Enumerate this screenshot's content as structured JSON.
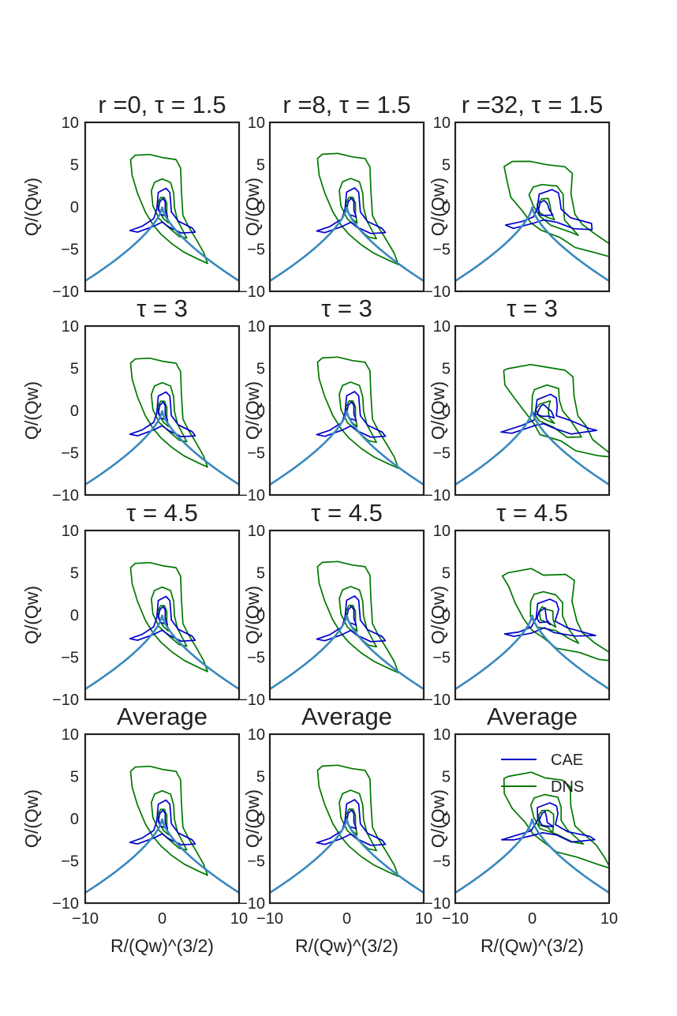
{
  "figure": {
    "shared_x_axis": {
      "label": "R/(Qw)^(3/2)",
      "range": [
        -10,
        10
      ],
      "ticks": [
        "−10",
        "0",
        "10"
      ]
    },
    "shared_y_axis": {
      "label": "Q/(Qw)",
      "range": [
        -10,
        10
      ],
      "ticks": [
        "10",
        "5",
        "0",
        "−5",
        "−10"
      ]
    },
    "legend": {
      "placement": "top-right",
      "entries": [
        {
          "label": "CAE",
          "color": "#0000cc"
        },
        {
          "label": "DNS",
          "color": "#007700"
        }
      ]
    },
    "colors": {
      "cae": "#0000cc",
      "dns": "#007700",
      "boundary": "#3b88be",
      "frame": "#222222"
    }
  },
  "chart_data": [
    {
      "type": "line",
      "title": "r =0, τ = 1.5",
      "panel": "row1-col1"
    },
    {
      "type": "line",
      "title": "r =8, τ = 1.5",
      "panel": "row1-col2"
    },
    {
      "type": "line",
      "title": "r =32, τ = 1.5",
      "panel": "row1-col3"
    },
    {
      "type": "line",
      "title": "τ = 3",
      "panel": "row2-col1"
    },
    {
      "type": "line",
      "title": "τ = 3",
      "panel": "row2-col2"
    },
    {
      "type": "line",
      "title": "τ = 3",
      "panel": "row2-col3"
    },
    {
      "type": "line",
      "title": "τ = 4.5",
      "panel": "row3-col1"
    },
    {
      "type": "line",
      "title": "τ = 4.5",
      "panel": "row3-col2"
    },
    {
      "type": "line",
      "title": "τ = 4.5",
      "panel": "row3-col3"
    },
    {
      "type": "line",
      "title": "Average",
      "panel": "row4-col1"
    },
    {
      "type": "line",
      "title": "Average",
      "panel": "row4-col2"
    },
    {
      "type": "line",
      "title": "Average",
      "panel": "row4-col3"
    }
  ],
  "boundary_curve": {
    "equation": "Q = -(27/4 R^2)^(1/3)",
    "x_range": [
      -10,
      10
    ]
  },
  "contours": {
    "dns_outer": [
      [
        -4.1,
        5.6
      ],
      [
        -3.5,
        6.1
      ],
      [
        -1.6,
        6.2
      ],
      [
        0.2,
        5.8
      ],
      [
        1.8,
        5.6
      ],
      [
        2.4,
        4.6
      ],
      [
        2.5,
        2
      ],
      [
        2.7,
        -1
      ],
      [
        3.4,
        -2.3
      ],
      [
        4.4,
        -3.8
      ],
      [
        5.4,
        -5.4
      ],
      [
        5.9,
        -6.7
      ],
      [
        4.7,
        -6.2
      ],
      [
        2.9,
        -5.4
      ],
      [
        1.3,
        -4.4
      ],
      [
        -0.2,
        -3.2
      ],
      [
        -1.2,
        -2.1
      ],
      [
        -2.2,
        -0.6
      ],
      [
        -3.2,
        1.6
      ],
      [
        -3.9,
        3.7
      ]
    ],
    "dns_middle": [
      [
        -1.4,
        1.9
      ],
      [
        -1,
        2.9
      ],
      [
        0,
        3.3
      ],
      [
        1.1,
        2.9
      ],
      [
        1.5,
        1.6
      ],
      [
        1.6,
        -0.1
      ],
      [
        2,
        -1.6
      ],
      [
        3.2,
        -3.7
      ],
      [
        2.2,
        -3.5
      ],
      [
        0.8,
        -2.4
      ],
      [
        -0.4,
        -1.4
      ],
      [
        -1.2,
        0.1
      ]
    ],
    "dns_inner": [
      [
        -0.6,
        0.4
      ],
      [
        -0.2,
        1.1
      ],
      [
        0.3,
        1.1
      ],
      [
        0.6,
        0.4
      ],
      [
        0.6,
        -0.8
      ],
      [
        0.8,
        -1.9
      ],
      [
        0.2,
        -1.4
      ],
      [
        -0.3,
        -0.7
      ]
    ],
    "cae_outer": [
      [
        -0.5,
        1.7
      ],
      [
        0.5,
        2.2
      ],
      [
        1,
        1.7
      ],
      [
        1.1,
        0.6
      ],
      [
        1.2,
        -0.6
      ],
      [
        2.1,
        -1.7
      ],
      [
        3.9,
        -2.5
      ],
      [
        4.3,
        -3
      ],
      [
        2.5,
        -3.1
      ],
      [
        0.9,
        -2.4
      ],
      [
        0,
        -1.8
      ],
      [
        -1.1,
        -2.3
      ],
      [
        -3.2,
        -3
      ],
      [
        -4.2,
        -2.8
      ],
      [
        -2.6,
        -2.3
      ],
      [
        -1.1,
        -1.4
      ],
      [
        -0.7,
        -0.3
      ]
    ],
    "cae_inner": [
      [
        -0.3,
        0.6
      ],
      [
        0.1,
        1
      ],
      [
        0.4,
        0.6
      ],
      [
        0.4,
        -0.4
      ],
      [
        0.7,
        -1.2
      ],
      [
        0.2,
        -1
      ],
      [
        -0.2,
        -0.9
      ],
      [
        -0.5,
        -0.3
      ]
    ]
  }
}
